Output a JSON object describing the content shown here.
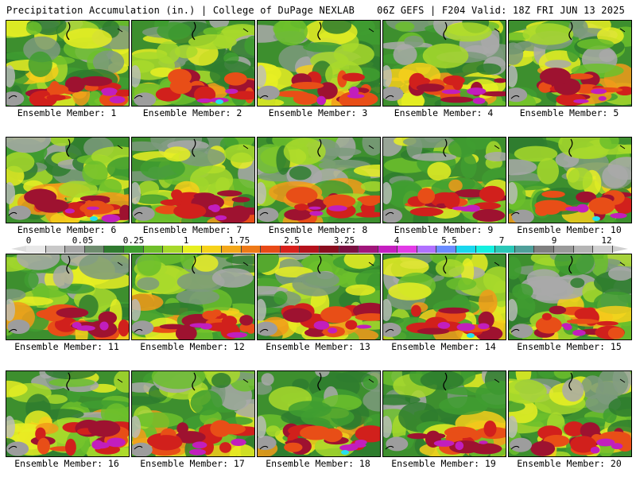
{
  "header": {
    "left_title": "Precipitation Accumulation (in.) | College of DuPage NEXLAB",
    "right_title": "06Z GEFS | F204 Valid: 18Z FRI JUN 13 2025"
  },
  "panels": [
    {
      "caption": "Ensemble Member: 1"
    },
    {
      "caption": "Ensemble Member: 2"
    },
    {
      "caption": "Ensemble Member: 3"
    },
    {
      "caption": "Ensemble Member: 4"
    },
    {
      "caption": "Ensemble Member: 5"
    },
    {
      "caption": "Ensemble Member: 6"
    },
    {
      "caption": "Ensemble Member: 7"
    },
    {
      "caption": "Ensemble Member: 8"
    },
    {
      "caption": "Ensemble Member: 9"
    },
    {
      "caption": "Ensemble Member: 10"
    },
    {
      "caption": "Ensemble Member: 11"
    },
    {
      "caption": "Ensemble Member: 12"
    },
    {
      "caption": "Ensemble Member: 13"
    },
    {
      "caption": "Ensemble Member: 14"
    },
    {
      "caption": "Ensemble Member: 15"
    },
    {
      "caption": "Ensemble Member: 16"
    },
    {
      "caption": "Ensemble Member: 17"
    },
    {
      "caption": "Ensemble Member: 18"
    },
    {
      "caption": "Ensemble Member: 19"
    },
    {
      "caption": "Ensemble Member: 20"
    }
  ],
  "colorbar": {
    "labels": [
      "0",
      "0.05",
      "0.25",
      "1",
      "1.75",
      "2.5",
      "3.25",
      "4",
      "5.5",
      "7",
      "9",
      "12"
    ],
    "colors": [
      "#e8e8e8",
      "#c8c8c8",
      "#a8a8a8",
      "#6e8c6e",
      "#2f7a2f",
      "#3e9c2e",
      "#6fbf2a",
      "#a6d82a",
      "#e6ef20",
      "#f6d21a",
      "#f3a71a",
      "#ee7a18",
      "#e84a17",
      "#d8201c",
      "#b5121c",
      "#8a0d1e",
      "#7a1040",
      "#a0157a",
      "#c51ec0",
      "#e23be6",
      "#b070ff",
      "#6a8cff",
      "#19d7ee",
      "#14f0e0",
      "#2ac8b8",
      "#4f9f9a",
      "#7f7f7f",
      "#9a9a9a",
      "#b4b4b4",
      "#cfcfcf"
    ]
  }
}
